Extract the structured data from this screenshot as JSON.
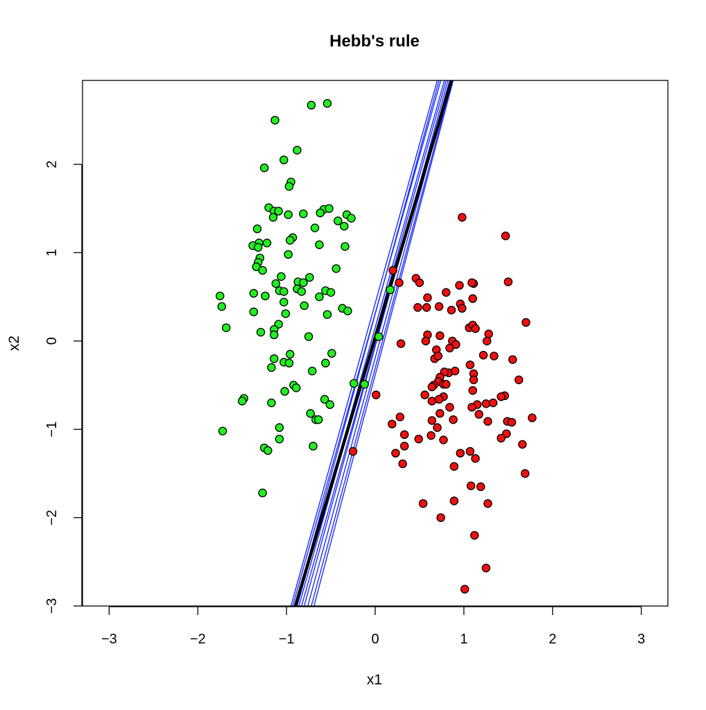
{
  "chart_data": {
    "type": "scatter",
    "title": "Hebb's rule",
    "xlabel": "x1",
    "ylabel": "x2",
    "xlim": [
      -3.3,
      3.3
    ],
    "ylim": [
      -3.0,
      2.95
    ],
    "xticks": [
      -3,
      -2,
      -1,
      0,
      1,
      2,
      3
    ],
    "yticks": [
      -3,
      -2,
      -1,
      0,
      1,
      2
    ],
    "xtick_labels": [
      "−3",
      "−2",
      "−1",
      "0",
      "1",
      "2",
      "3"
    ],
    "ytick_labels": [
      "−3",
      "−2",
      "−1",
      "0",
      "1",
      "2"
    ],
    "grid": false,
    "legend": "none",
    "colors": {
      "class_a": "#22ee22",
      "class_b": "#ee1111",
      "history_lines": "#1a2bff",
      "final_line": "#000000"
    },
    "series": [
      {
        "color": "#22ee22",
        "points": [
          [
            -0.72,
            2.67
          ],
          [
            -0.54,
            2.69
          ],
          [
            -1.13,
            2.5
          ],
          [
            -0.88,
            2.16
          ],
          [
            -1.03,
            2.05
          ],
          [
            -1.25,
            1.96
          ],
          [
            -0.95,
            1.8
          ],
          [
            -0.97,
            1.75
          ],
          [
            -1.2,
            1.51
          ],
          [
            -1.14,
            1.47
          ],
          [
            -1.09,
            1.47
          ],
          [
            -0.58,
            1.49
          ],
          [
            -0.52,
            1.5
          ],
          [
            -0.81,
            1.44
          ],
          [
            -0.98,
            1.43
          ],
          [
            -0.62,
            1.45
          ],
          [
            -1.15,
            1.4
          ],
          [
            -0.32,
            1.43
          ],
          [
            -0.27,
            1.39
          ],
          [
            -0.42,
            1.36
          ],
          [
            -0.68,
            1.28
          ],
          [
            -1.33,
            1.27
          ],
          [
            -0.35,
            1.3
          ],
          [
            -0.93,
            1.17
          ],
          [
            -0.96,
            1.14
          ],
          [
            -1.31,
            1.11
          ],
          [
            -1.22,
            1.11
          ],
          [
            -1.38,
            1.08
          ],
          [
            -1.32,
            1.06
          ],
          [
            -0.63,
            1.09
          ],
          [
            -0.34,
            1.07
          ],
          [
            -0.98,
            0.98
          ],
          [
            -1.3,
            0.94
          ],
          [
            -1.32,
            0.89
          ],
          [
            -1.34,
            0.84
          ],
          [
            -1.27,
            0.8
          ],
          [
            -0.44,
            0.82
          ],
          [
            -1.06,
            0.73
          ],
          [
            -0.74,
            0.72
          ],
          [
            -0.87,
            0.67
          ],
          [
            -1.12,
            0.65
          ],
          [
            -0.81,
            0.66
          ],
          [
            -0.88,
            0.59
          ],
          [
            -0.83,
            0.56
          ],
          [
            -1.08,
            0.57
          ],
          [
            -1.03,
            0.56
          ],
          [
            -0.56,
            0.57
          ],
          [
            -0.5,
            0.55
          ],
          [
            -1.37,
            0.54
          ],
          [
            -1.24,
            0.51
          ],
          [
            -0.63,
            0.5
          ],
          [
            -1.75,
            0.51
          ],
          [
            -1.73,
            0.39
          ],
          [
            -1.03,
            0.44
          ],
          [
            -0.8,
            0.4
          ],
          [
            -0.37,
            0.37
          ],
          [
            -0.31,
            0.34
          ],
          [
            -1.37,
            0.33
          ],
          [
            -1.01,
            0.31
          ],
          [
            -0.54,
            0.3
          ],
          [
            -1.09,
            0.19
          ],
          [
            -1.68,
            0.15
          ],
          [
            -1.14,
            0.13
          ],
          [
            -1.29,
            0.1
          ],
          [
            -1.14,
            0.07
          ],
          [
            -0.75,
            0.05
          ],
          [
            -0.96,
            -0.15
          ],
          [
            -0.49,
            -0.14
          ],
          [
            -1.14,
            -0.2
          ],
          [
            -1.03,
            -0.24
          ],
          [
            -0.97,
            -0.25
          ],
          [
            -0.56,
            -0.25
          ],
          [
            -1.17,
            -0.3
          ],
          [
            -0.71,
            -0.34
          ],
          [
            -0.24,
            -0.48
          ],
          [
            -0.92,
            -0.5
          ],
          [
            -0.89,
            -0.53
          ],
          [
            -1.02,
            -0.57
          ],
          [
            -1.48,
            -0.65
          ],
          [
            -0.57,
            -0.66
          ],
          [
            -1.5,
            -0.68
          ],
          [
            -1.17,
            -0.7
          ],
          [
            -0.51,
            -0.72
          ],
          [
            -0.73,
            -0.82
          ],
          [
            -0.67,
            -0.89
          ],
          [
            -0.64,
            -0.89
          ],
          [
            -1.08,
            -0.98
          ],
          [
            -1.72,
            -1.02
          ],
          [
            -1.08,
            -1.11
          ],
          [
            -0.7,
            -1.19
          ],
          [
            -1.25,
            -1.21
          ],
          [
            -1.21,
            -1.24
          ],
          [
            -1.27,
            -1.72
          ],
          [
            -0.12,
            -0.49
          ],
          [
            0.04,
            0.05
          ],
          [
            0.17,
            0.58
          ]
        ]
      },
      {
        "color": "#ee1111",
        "points": [
          [
            0.98,
            1.4
          ],
          [
            1.47,
            1.19
          ],
          [
            1.5,
            0.67
          ],
          [
            0.2,
            0.8
          ],
          [
            0.46,
            0.71
          ],
          [
            0.5,
            0.66
          ],
          [
            0.27,
            0.66
          ],
          [
            1.11,
            0.65
          ],
          [
            0.95,
            0.63
          ],
          [
            1.09,
            0.66
          ],
          [
            0.8,
            0.55
          ],
          [
            0.59,
            0.49
          ],
          [
            1.1,
            0.48
          ],
          [
            0.96,
            0.42
          ],
          [
            0.72,
            0.39
          ],
          [
            0.86,
            0.35
          ],
          [
            0.48,
            0.38
          ],
          [
            0.98,
            0.37
          ],
          [
            0.58,
            0.38
          ],
          [
            1.7,
            0.21
          ],
          [
            1.06,
            0.15
          ],
          [
            1.1,
            0.18
          ],
          [
            1.13,
            0.14
          ],
          [
            0.59,
            0.07
          ],
          [
            1.28,
            0.08
          ],
          [
            0.73,
            0.06
          ],
          [
            1.26,
            0.0
          ],
          [
            0.57,
            0.0
          ],
          [
            0.87,
            0.0
          ],
          [
            0.91,
            -0.04
          ],
          [
            0.84,
            -0.08
          ],
          [
            0.69,
            -0.1
          ],
          [
            0.29,
            -0.03
          ],
          [
            1.22,
            -0.16
          ],
          [
            1.34,
            -0.17
          ],
          [
            0.67,
            -0.2
          ],
          [
            0.71,
            -0.17
          ],
          [
            1.55,
            -0.21
          ],
          [
            1.07,
            -0.27
          ],
          [
            0.83,
            -0.36
          ],
          [
            0.78,
            -0.35
          ],
          [
            0.9,
            -0.34
          ],
          [
            1.11,
            -0.37
          ],
          [
            0.73,
            -0.41
          ],
          [
            1.62,
            -0.44
          ],
          [
            0.71,
            -0.46
          ],
          [
            1.11,
            -0.44
          ],
          [
            0.77,
            -0.49
          ],
          [
            0.66,
            -0.5
          ],
          [
            0.8,
            -0.49
          ],
          [
            0.64,
            -0.52
          ],
          [
            0.56,
            -0.61
          ],
          [
            1.1,
            -0.56
          ],
          [
            0.77,
            -0.63
          ],
          [
            1.46,
            -0.62
          ],
          [
            1.42,
            -0.63
          ],
          [
            0.01,
            -0.61
          ],
          [
            0.64,
            -0.68
          ],
          [
            0.72,
            -0.66
          ],
          [
            1.25,
            -0.71
          ],
          [
            1.15,
            -0.72
          ],
          [
            1.33,
            -0.7
          ],
          [
            0.84,
            -0.75
          ],
          [
            1.09,
            -0.75
          ],
          [
            0.73,
            -0.82
          ],
          [
            1.17,
            -0.83
          ],
          [
            1.77,
            -0.87
          ],
          [
            0.28,
            -0.86
          ],
          [
            0.88,
            -0.89
          ],
          [
            0.64,
            -0.9
          ],
          [
            1.27,
            -0.91
          ],
          [
            1.49,
            -0.91
          ],
          [
            1.54,
            -0.92
          ],
          [
            0.19,
            -0.94
          ],
          [
            0.7,
            -0.98
          ],
          [
            1.48,
            -1.05
          ],
          [
            0.33,
            -1.06
          ],
          [
            0.63,
            -1.07
          ],
          [
            1.42,
            -1.1
          ],
          [
            0.49,
            -1.11
          ],
          [
            0.77,
            -1.12
          ],
          [
            1.66,
            -1.17
          ],
          [
            0.33,
            -1.19
          ],
          [
            0.96,
            -1.27
          ],
          [
            1.07,
            -1.25
          ],
          [
            1.13,
            -1.33
          ],
          [
            -0.25,
            -1.25
          ],
          [
            0.23,
            -1.27
          ],
          [
            0.31,
            -1.39
          ],
          [
            0.89,
            -1.42
          ],
          [
            1.69,
            -1.5
          ],
          [
            1.08,
            -1.64
          ],
          [
            1.19,
            -1.65
          ],
          [
            0.89,
            -1.81
          ],
          [
            0.54,
            -1.84
          ],
          [
            1.27,
            -1.84
          ],
          [
            0.74,
            -2.0
          ],
          [
            1.12,
            -2.2
          ],
          [
            1.25,
            -2.57
          ],
          [
            1.01,
            -2.81
          ]
        ]
      }
    ],
    "history_lines": [
      {
        "x_at_ymin": -0.95,
        "x_at_ymax": 0.7
      },
      {
        "x_at_ymin": -0.93,
        "x_at_ymax": 0.74
      },
      {
        "x_at_ymin": -0.9,
        "x_at_ymax": 0.72
      },
      {
        "x_at_ymin": -0.88,
        "x_at_ymax": 0.78
      },
      {
        "x_at_ymin": -0.86,
        "x_at_ymax": 0.8
      },
      {
        "x_at_ymin": -0.83,
        "x_at_ymax": 0.84
      },
      {
        "x_at_ymin": -0.8,
        "x_at_ymax": 0.82
      },
      {
        "x_at_ymin": -0.76,
        "x_at_ymax": 0.85
      },
      {
        "x_at_ymin": -0.72,
        "x_at_ymax": 0.87
      },
      {
        "x_at_ymin": -0.69,
        "x_at_ymax": 0.88
      }
    ],
    "final_line": {
      "x_at_ymin": -0.9,
      "x_at_ymax": 0.86
    }
  }
}
